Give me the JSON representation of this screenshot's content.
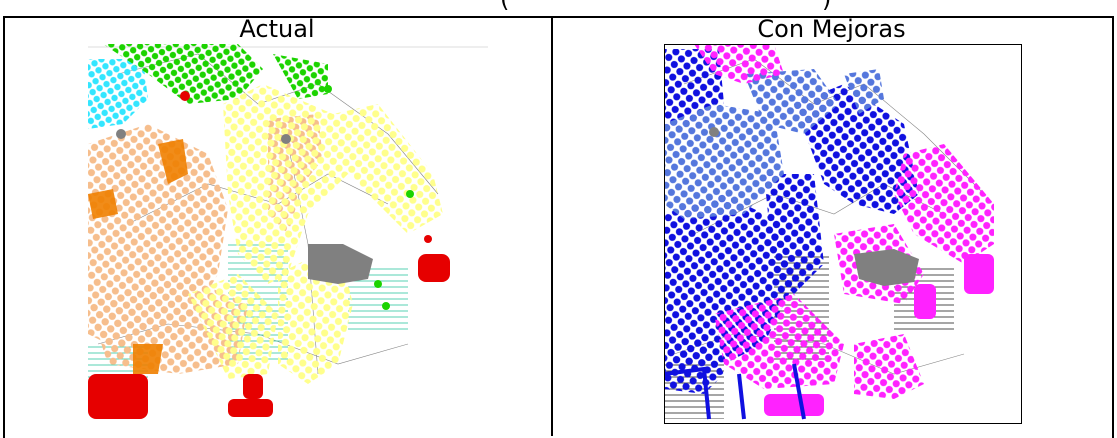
{
  "top_fragment": "(",
  "top_fragment_right": ")",
  "panels": [
    {
      "title": "Actual"
    },
    {
      "title": "Con Mejoras"
    }
  ],
  "colors": {
    "left_peach": "#F6BE8D",
    "left_yellow": "#FFFF8C",
    "left_green": "#1CD300",
    "left_cyan": "#33E6FF",
    "left_orange": "#F08000",
    "left_red": "#E60000",
    "left_gray": "#808080",
    "right_blue": "#1010E0",
    "right_steel": "#5577DD",
    "right_magenta": "#FF22FF",
    "right_gray": "#808080"
  }
}
